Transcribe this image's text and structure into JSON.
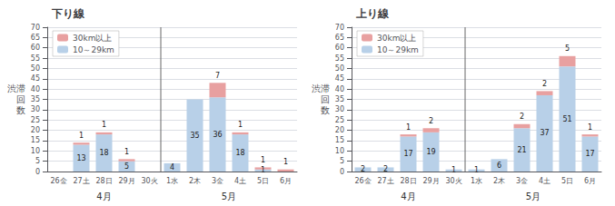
{
  "chart_data": [
    {
      "type": "bar",
      "title": "下り線",
      "ylabel": "渋滞\n回\n数",
      "categories": [
        "26金",
        "27土",
        "28日",
        "29月",
        "30火",
        "1水",
        "2木",
        "3金",
        "4土",
        "5日",
        "6月"
      ],
      "series": [
        {
          "name": "10～29km",
          "color": "#b8d0e8",
          "values": [
            0,
            13,
            18,
            5,
            0,
            4,
            35,
            36,
            18,
            1,
            0
          ]
        },
        {
          "name": "30km以上",
          "color": "#e8a0a0",
          "values": [
            0,
            1,
            1,
            1,
            0,
            0,
            0,
            7,
            1,
            1,
            1
          ]
        }
      ],
      "stacked": true,
      "data_labels": true,
      "ylim": [
        0,
        70
      ],
      "yticks": [
        0,
        5,
        10,
        15,
        20,
        25,
        30,
        35,
        40,
        45,
        50,
        55,
        60,
        65,
        70
      ],
      "grid": true,
      "legend": "upper left",
      "annotations": [
        {
          "text": "4月",
          "categories": [
            "26金",
            "27土",
            "28日",
            "29月",
            "30火"
          ]
        },
        {
          "text": "5月",
          "categories": [
            "1水",
            "2木",
            "3金",
            "4土",
            "5日",
            "6月"
          ]
        }
      ]
    },
    {
      "type": "bar",
      "title": "上り線",
      "ylabel": "渋滞\n回\n数",
      "categories": [
        "26金",
        "27土",
        "28日",
        "29月",
        "30火",
        "1水",
        "2木",
        "3金",
        "4土",
        "5日",
        "6月"
      ],
      "series": [
        {
          "name": "10～29km",
          "color": "#b8d0e8",
          "values": [
            2,
            2,
            17,
            19,
            1,
            1,
            6,
            21,
            37,
            51,
            17
          ]
        },
        {
          "name": "30km以上",
          "color": "#e8a0a0",
          "values": [
            0,
            0,
            1,
            2,
            0,
            0,
            0,
            2,
            2,
            5,
            1
          ]
        }
      ],
      "stacked": true,
      "data_labels": true,
      "ylim": [
        0,
        70
      ],
      "yticks": [
        0,
        5,
        10,
        15,
        20,
        25,
        30,
        35,
        40,
        45,
        50,
        55,
        60,
        65,
        70
      ],
      "grid": true,
      "legend": "upper left",
      "annotations": [
        {
          "text": "4月",
          "categories": [
            "26金",
            "27土",
            "28日",
            "29月",
            "30火"
          ]
        },
        {
          "text": "5月",
          "categories": [
            "1水",
            "2木",
            "3金",
            "4土",
            "5日",
            "6月"
          ]
        }
      ]
    }
  ]
}
